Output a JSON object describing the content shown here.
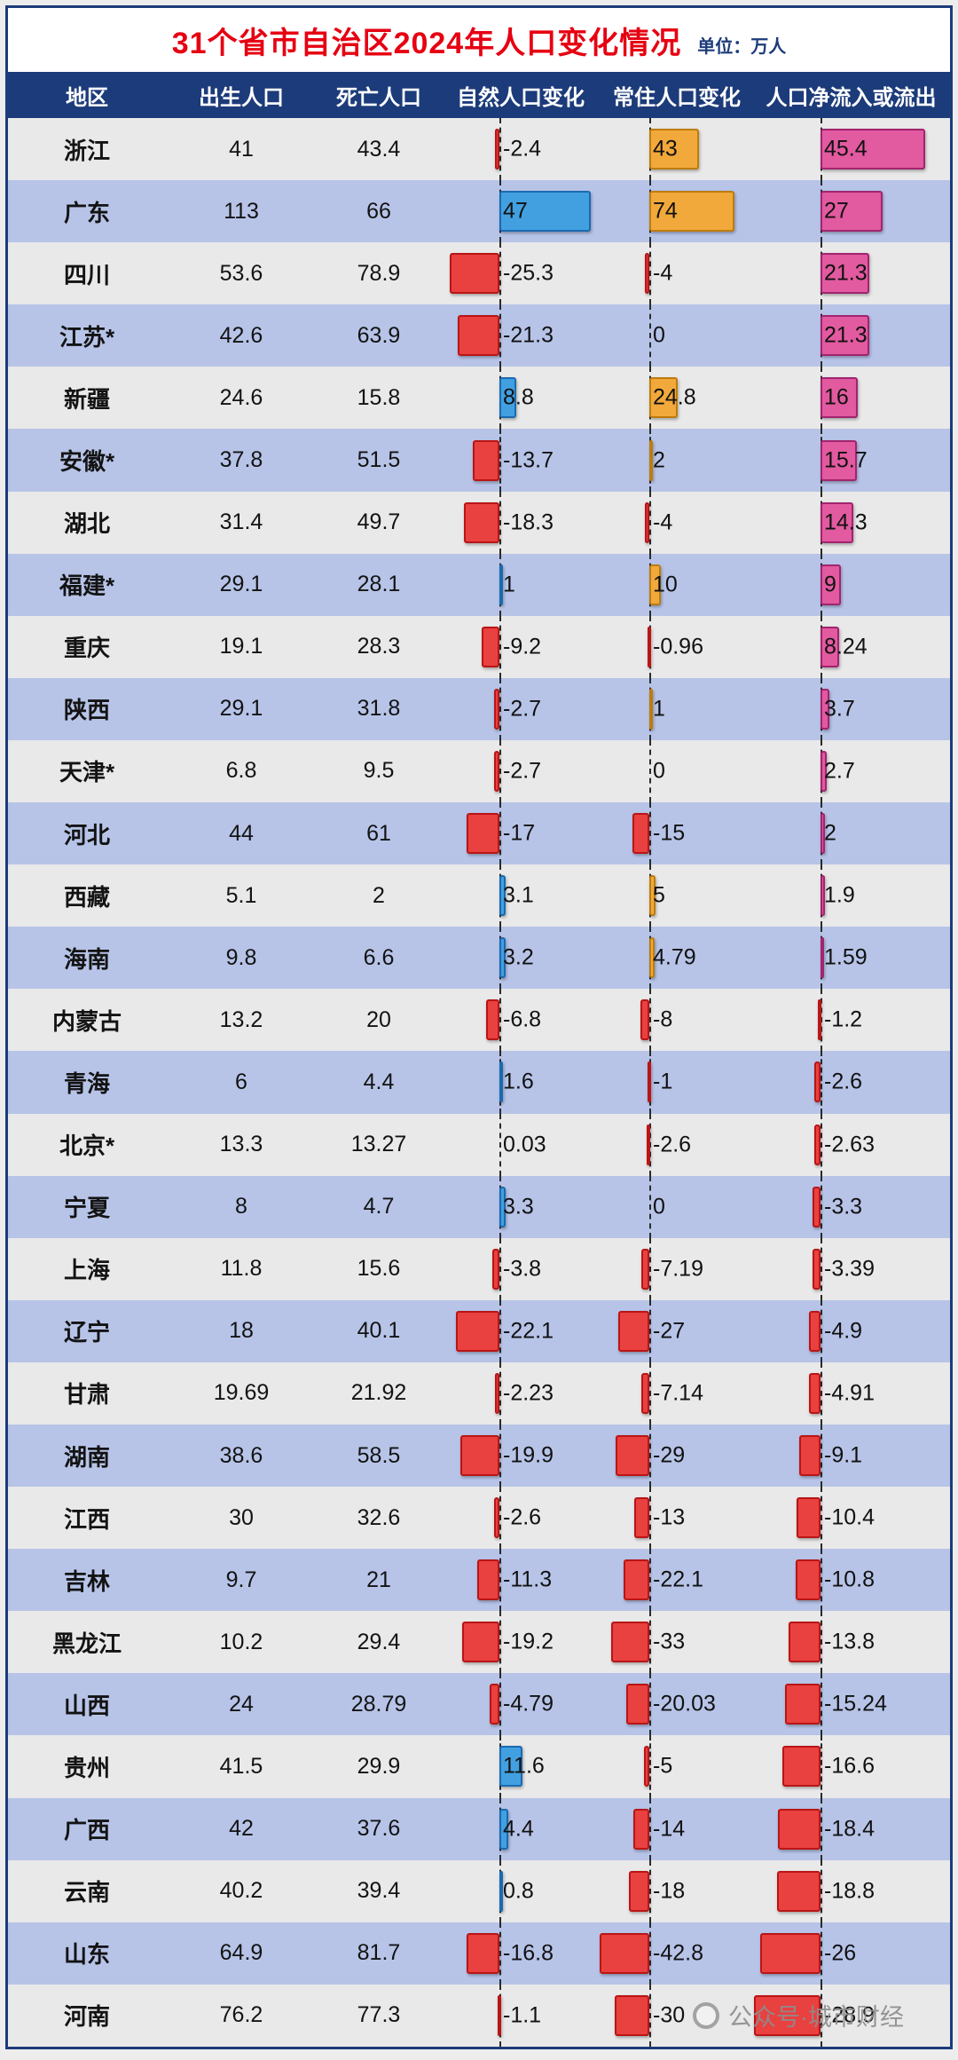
{
  "page": {
    "title": "31个省市自治区2024年人口变化情况",
    "unit_label": "单位：万人",
    "watermark": "公众号·城市财经"
  },
  "chart_data": {
    "type": "table",
    "title": "31个省市自治区2024年人口变化情况",
    "unit": "万人",
    "columns": [
      "地区",
      "出生人口",
      "死亡人口",
      "自然人口变化",
      "常住人口变化",
      "人口净流入或流出"
    ],
    "bar_chart_columns": [
      "自然人口变化",
      "常住人口变化",
      "人口净流入或流出"
    ],
    "rows": [
      {
        "region": "浙江",
        "births": 41,
        "deaths": 43.4,
        "natural_change": -2.4,
        "resident_change": 43,
        "net_migration": 45.4
      },
      {
        "region": "广东",
        "births": 113,
        "deaths": 66,
        "natural_change": 47,
        "resident_change": 74,
        "net_migration": 27
      },
      {
        "region": "四川",
        "births": 53.6,
        "deaths": 78.9,
        "natural_change": -25.3,
        "resident_change": -4,
        "net_migration": 21.3
      },
      {
        "region": "江苏*",
        "births": 42.6,
        "deaths": 63.9,
        "natural_change": -21.3,
        "resident_change": 0,
        "net_migration": 21.3
      },
      {
        "region": "新疆",
        "births": 24.6,
        "deaths": 15.8,
        "natural_change": 8.8,
        "resident_change": 24.8,
        "net_migration": 16
      },
      {
        "region": "安徽*",
        "births": 37.8,
        "deaths": 51.5,
        "natural_change": -13.7,
        "resident_change": 2,
        "net_migration": 15.7
      },
      {
        "region": "湖北",
        "births": 31.4,
        "deaths": 49.7,
        "natural_change": -18.3,
        "resident_change": -4,
        "net_migration": 14.3
      },
      {
        "region": "福建*",
        "births": 29.1,
        "deaths": 28.1,
        "natural_change": 1,
        "resident_change": 10,
        "net_migration": 9
      },
      {
        "region": "重庆",
        "births": 19.1,
        "deaths": 28.3,
        "natural_change": -9.2,
        "resident_change": -0.96,
        "net_migration": 8.24
      },
      {
        "region": "陕西",
        "births": 29.1,
        "deaths": 31.8,
        "natural_change": -2.7,
        "resident_change": 1,
        "net_migration": 3.7
      },
      {
        "region": "天津*",
        "births": 6.8,
        "deaths": 9.5,
        "natural_change": -2.7,
        "resident_change": 0,
        "net_migration": 2.7
      },
      {
        "region": "河北",
        "births": 44,
        "deaths": 61,
        "natural_change": -17,
        "resident_change": -15,
        "net_migration": 2
      },
      {
        "region": "西藏",
        "births": 5.1,
        "deaths": 2,
        "natural_change": 3.1,
        "resident_change": 5,
        "net_migration": 1.9
      },
      {
        "region": "海南",
        "births": 9.8,
        "deaths": 6.6,
        "natural_change": 3.2,
        "resident_change": 4.79,
        "net_migration": 1.59
      },
      {
        "region": "内蒙古",
        "births": 13.2,
        "deaths": 20,
        "natural_change": -6.8,
        "resident_change": -8,
        "net_migration": -1.2
      },
      {
        "region": "青海",
        "births": 6,
        "deaths": 4.4,
        "natural_change": 1.6,
        "resident_change": -1,
        "net_migration": -2.6
      },
      {
        "region": "北京*",
        "births": 13.3,
        "deaths": 13.27,
        "natural_change": 0.03,
        "resident_change": -2.6,
        "net_migration": -2.63
      },
      {
        "region": "宁夏",
        "births": 8,
        "deaths": 4.7,
        "natural_change": 3.3,
        "resident_change": 0,
        "net_migration": -3.3
      },
      {
        "region": "上海",
        "births": 11.8,
        "deaths": 15.6,
        "natural_change": -3.8,
        "resident_change": -7.19,
        "net_migration": -3.39
      },
      {
        "region": "辽宁",
        "births": 18,
        "deaths": 40.1,
        "natural_change": -22.1,
        "resident_change": -27,
        "net_migration": -4.9
      },
      {
        "region": "甘肃",
        "births": 19.69,
        "deaths": 21.92,
        "natural_change": -2.23,
        "resident_change": -7.14,
        "net_migration": -4.91
      },
      {
        "region": "湖南",
        "births": 38.6,
        "deaths": 58.5,
        "natural_change": -19.9,
        "resident_change": -29,
        "net_migration": -9.1
      },
      {
        "region": "江西",
        "births": 30,
        "deaths": 32.6,
        "natural_change": -2.6,
        "resident_change": -13,
        "net_migration": -10.4
      },
      {
        "region": "吉林",
        "births": 9.7,
        "deaths": 21,
        "natural_change": -11.3,
        "resident_change": -22.1,
        "net_migration": -10.8
      },
      {
        "region": "黑龙江",
        "births": 10.2,
        "deaths": 29.4,
        "natural_change": -19.2,
        "resident_change": -33,
        "net_migration": -13.8
      },
      {
        "region": "山西",
        "births": 24,
        "deaths": 28.79,
        "natural_change": -4.79,
        "resident_change": -20.03,
        "net_migration": -15.24
      },
      {
        "region": "贵州",
        "births": 41.5,
        "deaths": 29.9,
        "natural_change": 11.6,
        "resident_change": -5,
        "net_migration": -16.6
      },
      {
        "region": "广西",
        "births": 42,
        "deaths": 37.6,
        "natural_change": 4.4,
        "resident_change": -14,
        "net_migration": -18.4
      },
      {
        "region": "云南",
        "births": 40.2,
        "deaths": 39.4,
        "natural_change": 0.8,
        "resident_change": -18,
        "net_migration": -18.8
      },
      {
        "region": "山东",
        "births": 64.9,
        "deaths": 81.7,
        "natural_change": -16.8,
        "resident_change": -42.8,
        "net_migration": -26
      },
      {
        "region": "河南",
        "births": 76.2,
        "deaths": 77.3,
        "natural_change": -1.1,
        "resident_change": -30,
        "net_migration": -28.9
      }
    ],
    "colors": {
      "title": "#e60012",
      "header_bg": "#1c3b7a",
      "row": "#e9e9e9",
      "row_alt": "#b7c4e8",
      "natural_positive_fill": "#42a0e0",
      "natural_positive_border": "#1a6ab0",
      "resident_positive_fill": "#f2a93b",
      "resident_positive_border": "#bd7c0c",
      "net_positive_fill": "#e25a9f",
      "net_positive_border": "#a2246f",
      "negative_fill": "#e94040",
      "negative_border": "#ba1515"
    }
  }
}
